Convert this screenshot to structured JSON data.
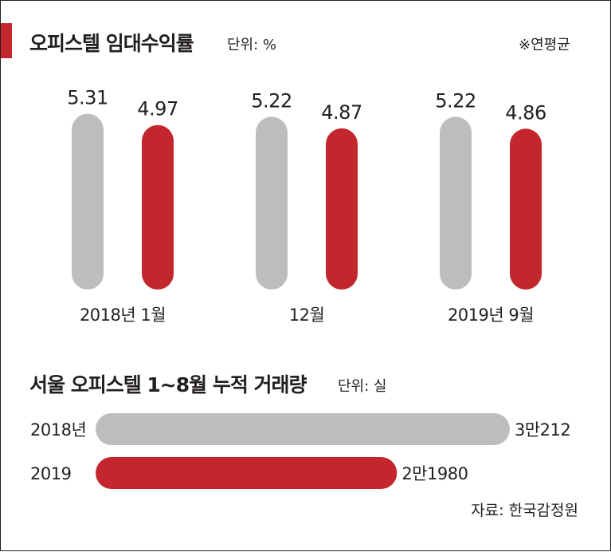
{
  "colors": {
    "gray": "#bcbdbf",
    "red": "#c4262e",
    "accent_tab": "#c4262e"
  },
  "source": "자료: 한국감정원",
  "chart_data": [
    {
      "type": "bar",
      "title": "오피스텔 임대수익률",
      "unit": "단위: %",
      "note": "※연평균",
      "categories": [
        "2018년 1월",
        "12월",
        "2019년 9월"
      ],
      "series": [
        {
          "values": [
            5.31,
            5.22,
            5.22
          ],
          "value_labels": [
            "5.31",
            "5.22",
            "5.22"
          ],
          "color": "#bcbdbf"
        },
        {
          "values": [
            4.97,
            4.87,
            4.86
          ],
          "value_labels": [
            "4.97",
            "4.87",
            "4.86"
          ],
          "color": "#c4262e"
        }
      ]
    },
    {
      "type": "bar",
      "orientation": "horizontal",
      "title": "서울 오피스텔 1~8월 누적 거래량",
      "unit": "단위: 실",
      "categories": [
        "2018년",
        "2019"
      ],
      "values": [
        30212,
        21980
      ],
      "value_labels": [
        "3만212",
        "2만1980"
      ],
      "colors": [
        "#bcbdbf",
        "#c4262e"
      ]
    }
  ]
}
